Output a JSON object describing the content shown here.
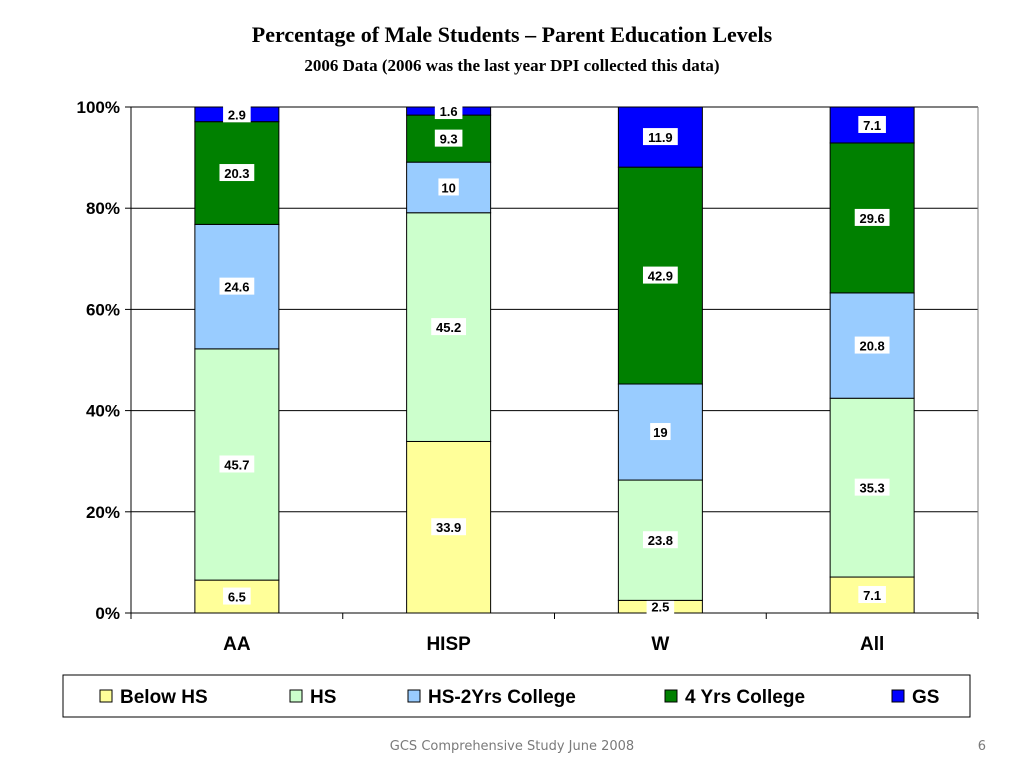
{
  "chart_data": {
    "type": "bar",
    "stacked": true,
    "percent_stacked": true,
    "title": "Percentage of Male Students – Parent Education Levels",
    "subtitle": "2006 Data (2006 was the last year DPI collected this data)",
    "categories": [
      "AA",
      "HISP",
      "W",
      "All"
    ],
    "series": [
      {
        "name": "Below HS",
        "color": "#FFFF99",
        "values": [
          6.5,
          33.9,
          2.5,
          7.1
        ]
      },
      {
        "name": "HS",
        "color": "#CCFFCC",
        "values": [
          45.7,
          45.2,
          23.8,
          35.3
        ]
      },
      {
        "name": "HS-2Yrs College",
        "color": "#99CCFF",
        "values": [
          24.6,
          10,
          19,
          20.8
        ]
      },
      {
        "name": "4 Yrs College",
        "color": "#008000",
        "values": [
          20.3,
          9.3,
          42.9,
          29.6
        ]
      },
      {
        "name": "GS",
        "color": "#0000FF",
        "values": [
          2.9,
          1.6,
          11.9,
          7.1
        ]
      }
    ],
    "y_ticks": [
      "0%",
      "20%",
      "40%",
      "60%",
      "80%",
      "100%"
    ],
    "ylim": [
      0,
      100
    ],
    "grid": true,
    "legend_position": "bottom"
  },
  "footer": {
    "text": "GCS Comprehensive Study June 2008",
    "page": "6"
  }
}
